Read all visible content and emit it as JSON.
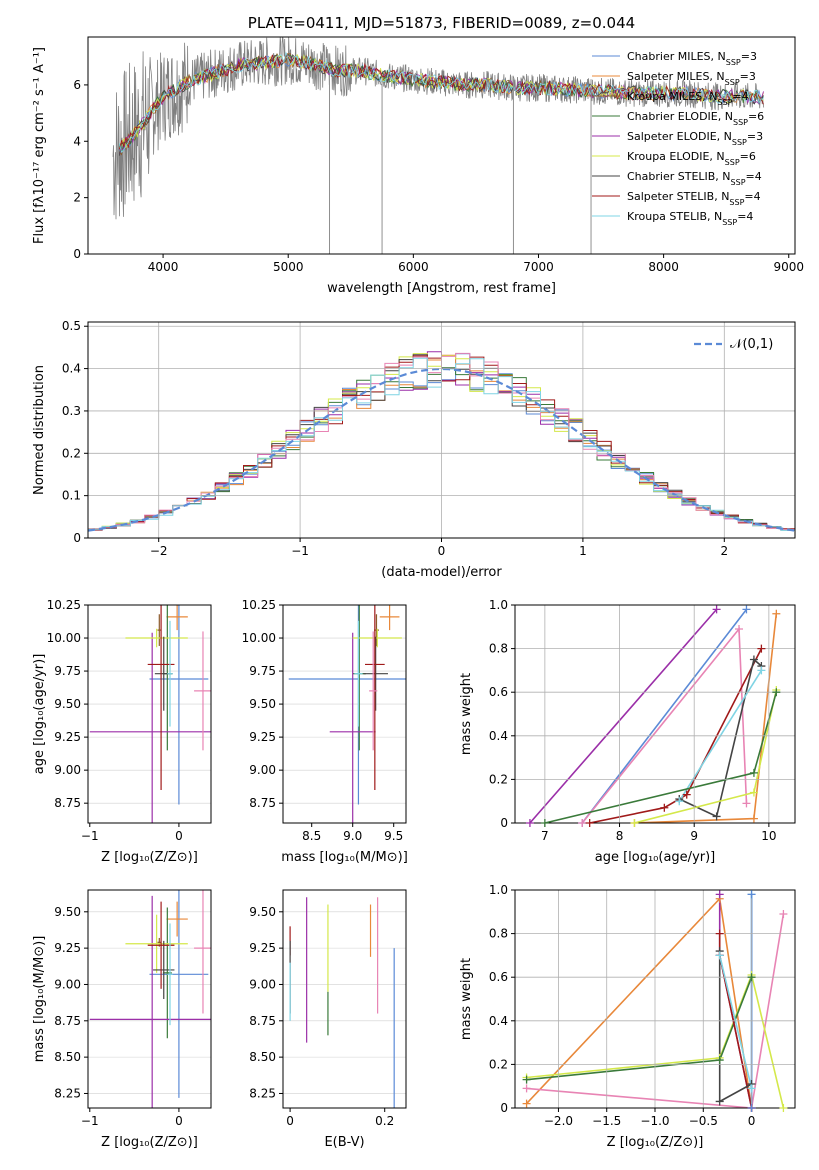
{
  "colors": [
    "#5b8ad6",
    "#e8883a",
    "#8c5a2b",
    "#3a7a3a",
    "#9b2fa8",
    "#d4e84a",
    "#444444",
    "#a01a1a",
    "#7fd4e4"
  ],
  "chart_data": [
    {
      "id": "spectrum",
      "type": "line",
      "title": "PLATE=0411, MJD=51873, FIBERID=0089, z=0.044",
      "xlabel": "wavelength [Angstrom, rest frame]",
      "ylabel": "Flux [fλ10⁻¹⁷ erg cm⁻² s⁻¹ A⁻¹]",
      "xlim": [
        3400,
        9050
      ],
      "ylim": [
        0,
        7.7
      ],
      "xticks": [
        4000,
        5000,
        6000,
        7000,
        8000,
        9000
      ],
      "yticks": [
        0,
        2,
        4,
        6
      ],
      "legend": [
        "Chabrier MILES, N_SSP=3",
        "Salpeter MILES, N_SSP=3",
        "Kroupa MILES, N_SSP=4",
        "Chabrier ELODIE, N_SSP=6",
        "Salpeter ELODIE, N_SSP=3",
        "Kroupa ELODIE, N_SSP=6",
        "Chabrier STELIB, N_SSP=4",
        "Salpeter STELIB, N_SSP=4",
        "Kroupa STELIB, N_SSP=4"
      ],
      "legend_position": "right",
      "data_trace_color": "#808080",
      "continuum_x": [
        3600,
        3700,
        3800,
        3900,
        4000,
        4200,
        4400,
        4600,
        4800,
        5000,
        5200,
        5400,
        5600,
        5800,
        6000,
        6200,
        6400,
        6600,
        6800,
        7000,
        7200,
        7400,
        7600,
        7800,
        8000,
        8200,
        8400,
        8600,
        8800
      ],
      "continuum_y": [
        3.5,
        3.9,
        4.4,
        5.0,
        5.6,
        6.1,
        6.4,
        6.7,
        6.8,
        6.9,
        6.75,
        6.5,
        6.5,
        6.3,
        6.2,
        6.1,
        6.0,
        6.0,
        5.9,
        5.9,
        5.85,
        5.8,
        5.75,
        5.7,
        5.7,
        5.7,
        5.6,
        5.6,
        5.55
      ]
    },
    {
      "id": "residuals",
      "type": "histogram",
      "xlabel": "(data-model)/error",
      "ylabel": "Normed distribution",
      "xlim": [
        -2.5,
        2.5
      ],
      "ylim": [
        0,
        0.51
      ],
      "xticks": [
        -2,
        -1,
        0,
        1,
        2
      ],
      "yticks": [
        0.0,
        0.1,
        0.2,
        0.3,
        0.4,
        0.5
      ],
      "reference_label": "𝒩(0,1)",
      "reference_color": "#5b8ad6",
      "grid": true
    },
    {
      "id": "age-vs-Z",
      "type": "errorbar",
      "xlabel": "Z [log₁₀(Z/Z⊙)]",
      "ylabel": "age  [log₁₀(age/yr)]",
      "xlim": [
        -1.02,
        0.36
      ],
      "ylim": [
        8.6,
        10.25
      ],
      "xticks": [
        -1,
        0
      ],
      "yticks": [
        8.75,
        9.0,
        9.25,
        9.5,
        9.75,
        10.0,
        10.25
      ],
      "points": [
        {
          "x": 0.0,
          "y": 9.69,
          "xerr": 0.33,
          "yerr": 0.95,
          "c": "#5b8ad6"
        },
        {
          "x": -0.02,
          "y": 10.16,
          "xerr": 0.12,
          "yerr": 0.1,
          "c": "#e8883a"
        },
        {
          "x": -0.22,
          "y": 10.06,
          "xerr": 0.02,
          "yerr": 0.12,
          "c": "#8c5a2b"
        },
        {
          "x": -0.13,
          "y": 9.73,
          "xerr": 0.05,
          "yerr": 0.58,
          "c": "#3a7a3a"
        },
        {
          "x": -0.3,
          "y": 9.29,
          "xerr": 0.7,
          "yerr": 0.75,
          "c": "#9b2fa8"
        },
        {
          "x": -0.25,
          "y": 10.0,
          "xerr": 0.35,
          "yerr": 0.07,
          "c": "#d4e84a"
        },
        {
          "x": -0.17,
          "y": 9.73,
          "xerr": 0.1,
          "yerr": 0.28,
          "c": "#444444"
        },
        {
          "x": -0.2,
          "y": 9.8,
          "xerr": 0.15,
          "yerr": 0.95,
          "c": "#a01a1a"
        },
        {
          "x": 0.27,
          "y": 9.6,
          "xerr": 0.1,
          "yerr": 0.45,
          "c": "#e884b4"
        },
        {
          "x": -0.1,
          "y": 9.73,
          "xerr": 0.03,
          "yerr": 0.4,
          "c": "#7fd4e4"
        }
      ]
    },
    {
      "id": "age-vs-mass",
      "type": "errorbar",
      "xlabel": "mass [log₁₀(M/M⊙)]",
      "ylabel": "",
      "xlim": [
        8.15,
        9.65
      ],
      "ylim": [
        8.6,
        10.25
      ],
      "xticks": [
        8.5,
        9.0,
        9.5
      ],
      "yticks": [
        8.75,
        9.0,
        9.25,
        9.5,
        9.75,
        10.0,
        10.25
      ],
      "points": [
        {
          "x": 9.07,
          "y": 9.69,
          "xerr": 0.85,
          "yerr": 0.95,
          "c": "#5b8ad6"
        },
        {
          "x": 9.45,
          "y": 10.16,
          "xerr": 0.12,
          "yerr": 0.1,
          "c": "#e8883a"
        },
        {
          "x": 9.29,
          "y": 10.06,
          "xerr": 0.03,
          "yerr": 0.12,
          "c": "#8c5a2b"
        },
        {
          "x": 9.08,
          "y": 9.73,
          "xerr": 0.08,
          "yerr": 0.58,
          "c": "#3a7a3a"
        },
        {
          "x": 9.0,
          "y": 9.29,
          "xerr": 0.28,
          "yerr": 0.75,
          "c": "#9b2fa8"
        },
        {
          "x": 9.3,
          "y": 10.0,
          "xerr": 0.3,
          "yerr": 0.07,
          "c": "#d4e84a"
        },
        {
          "x": 9.28,
          "y": 9.73,
          "xerr": 0.15,
          "yerr": 0.28,
          "c": "#444444"
        },
        {
          "x": 9.27,
          "y": 9.8,
          "xerr": 0.12,
          "yerr": 0.95,
          "c": "#a01a1a"
        },
        {
          "x": 9.25,
          "y": 9.6,
          "xerr": 0.05,
          "yerr": 0.45,
          "c": "#e884b4"
        },
        {
          "x": 9.07,
          "y": 9.73,
          "xerr": 0.05,
          "yerr": 0.4,
          "c": "#7fd4e4"
        }
      ]
    },
    {
      "id": "weight-vs-age",
      "type": "line",
      "xlabel": "age  [log₁₀(age/yr)]",
      "ylabel": "mass weight",
      "xlim": [
        6.6,
        10.35
      ],
      "ylim": [
        0,
        1.0
      ],
      "xticks": [
        7,
        8,
        9,
        10
      ],
      "yticks": [
        0.0,
        0.2,
        0.4,
        0.6,
        0.8,
        1.0
      ],
      "grid": true,
      "series": [
        {
          "c": "#9b2fa8",
          "x": [
            6.8,
            9.3
          ],
          "y": [
            0.0,
            0.98
          ]
        },
        {
          "c": "#5b8ad6",
          "x": [
            7.5,
            9.7
          ],
          "y": [
            0.0,
            0.98
          ]
        },
        {
          "c": "#e884b4",
          "x": [
            7.5,
            9.6,
            9.7
          ],
          "y": [
            0.0,
            0.89,
            0.09
          ]
        },
        {
          "c": "#a01a1a",
          "x": [
            7.6,
            8.6,
            8.9,
            9.9
          ],
          "y": [
            0.0,
            0.07,
            0.13,
            0.8
          ]
        },
        {
          "c": "#444444",
          "x": [
            8.8,
            9.3,
            9.8,
            9.9
          ],
          "y": [
            0.11,
            0.03,
            0.75,
            0.72
          ]
        },
        {
          "c": "#e8883a",
          "x": [
            8.2,
            9.8,
            10.1
          ],
          "y": [
            0.0,
            0.02,
            0.96
          ]
        },
        {
          "c": "#7fd4e4",
          "x": [
            8.8,
            9.9
          ],
          "y": [
            0.1,
            0.7
          ]
        },
        {
          "c": "#d4e84a",
          "x": [
            8.2,
            9.8,
            10.1
          ],
          "y": [
            0.0,
            0.14,
            0.61
          ]
        },
        {
          "c": "#3a7a3a",
          "x": [
            7.0,
            9.8,
            10.1
          ],
          "y": [
            0.0,
            0.23,
            0.6
          ]
        }
      ]
    },
    {
      "id": "mass-vs-Z",
      "type": "errorbar",
      "xlabel": "Z [log₁₀(Z/Z⊙)]",
      "ylabel": "mass [log₁₀(M/M⊙)]",
      "xlim": [
        -1.02,
        0.36
      ],
      "ylim": [
        8.15,
        9.65
      ],
      "xticks": [
        -1,
        0
      ],
      "yticks": [
        8.25,
        8.5,
        8.75,
        9.0,
        9.25,
        9.5
      ],
      "points": [
        {
          "x": 0.0,
          "y": 9.07,
          "xerr": 0.33,
          "yerr": 0.85,
          "c": "#5b8ad6"
        },
        {
          "x": -0.02,
          "y": 9.45,
          "xerr": 0.12,
          "yerr": 0.12,
          "c": "#e8883a"
        },
        {
          "x": -0.22,
          "y": 9.29,
          "xerr": 0.02,
          "yerr": 0.03,
          "c": "#8c5a2b"
        },
        {
          "x": -0.13,
          "y": 9.08,
          "xerr": 0.05,
          "yerr": 0.45,
          "c": "#3a7a3a"
        },
        {
          "x": -0.3,
          "y": 8.76,
          "xerr": 0.7,
          "yerr": 0.85,
          "c": "#9b2fa8"
        },
        {
          "x": -0.25,
          "y": 9.28,
          "xerr": 0.35,
          "yerr": 0.2,
          "c": "#d4e84a"
        },
        {
          "x": -0.17,
          "y": 9.1,
          "xerr": 0.12,
          "yerr": 0.2,
          "c": "#444444"
        },
        {
          "x": -0.2,
          "y": 9.27,
          "xerr": 0.15,
          "yerr": 0.3,
          "c": "#a01a1a"
        },
        {
          "x": 0.27,
          "y": 9.25,
          "xerr": 0.1,
          "yerr": 0.45,
          "c": "#e884b4"
        },
        {
          "x": -0.1,
          "y": 9.07,
          "xerr": 0.03,
          "yerr": 0.35,
          "c": "#7fd4e4"
        }
      ]
    },
    {
      "id": "mass-vs-ebv",
      "type": "errorbar",
      "xlabel": "E(B-V)",
      "ylabel": "",
      "xlim": [
        -0.015,
        0.245
      ],
      "ylim": [
        8.15,
        9.65
      ],
      "xticks": [
        0.0,
        0.2
      ],
      "yticks": [
        8.25,
        8.5,
        8.75,
        9.0,
        9.25,
        9.5
      ],
      "points": [
        {
          "x": 0.22,
          "y": 8.7,
          "xerr": 0,
          "yerr": 0.55,
          "c": "#5b8ad6"
        },
        {
          "x": 0.17,
          "y": 9.37,
          "xerr": 0,
          "yerr": 0.18,
          "c": "#e8883a"
        },
        {
          "x": 0.0,
          "y": 9.3,
          "xerr": 0,
          "yerr": 0.1,
          "c": "#a01a1a"
        },
        {
          "x": 0.08,
          "y": 8.8,
          "xerr": 0,
          "yerr": 0.15,
          "c": "#3a7a3a"
        },
        {
          "x": 0.035,
          "y": 9.1,
          "xerr": 0,
          "yerr": 0.5,
          "c": "#9b2fa8"
        },
        {
          "x": 0.08,
          "y": 9.25,
          "xerr": 0,
          "yerr": 0.3,
          "c": "#d4e84a"
        },
        {
          "x": 0.0,
          "y": 9.05,
          "xerr": 0,
          "yerr": 0.25,
          "c": "#444444"
        },
        {
          "x": 0.185,
          "y": 9.2,
          "xerr": 0,
          "yerr": 0.4,
          "c": "#e884b4"
        },
        {
          "x": 0.0,
          "y": 8.95,
          "xerr": 0,
          "yerr": 0.2,
          "c": "#7fd4e4"
        }
      ]
    },
    {
      "id": "weight-vs-Z",
      "type": "line",
      "xlabel": "Z [log₁₀(Z/Z⊙)]",
      "ylabel": "mass weight",
      "xlim": [
        -2.45,
        0.45
      ],
      "ylim": [
        0,
        1.0
      ],
      "xticks": [
        -2.0,
        -1.5,
        -1.0,
        -0.5,
        0.0
      ],
      "yticks": [
        0.0,
        0.2,
        0.4,
        0.6,
        0.8,
        1.0
      ],
      "grid": true,
      "series": [
        {
          "c": "#e8883a",
          "x": [
            -2.33,
            -0.33,
            0.0
          ],
          "y": [
            0.02,
            0.96,
            0.0
          ]
        },
        {
          "c": "#e884b4",
          "x": [
            -2.33,
            0.0,
            0.33
          ],
          "y": [
            0.09,
            0.0,
            0.89
          ]
        },
        {
          "c": "#d4e84a",
          "x": [
            -2.33,
            -0.33,
            0.0,
            0.33
          ],
          "y": [
            0.14,
            0.23,
            0.61,
            0.0
          ]
        },
        {
          "c": "#3a7a3a",
          "x": [
            -2.33,
            -0.33,
            0.0
          ],
          "y": [
            0.13,
            0.22,
            0.6
          ]
        },
        {
          "c": "#9b2fa8",
          "x": [
            -0.33,
            -0.33,
            0.0
          ],
          "y": [
            0.98,
            0.7,
            0.0
          ]
        },
        {
          "c": "#a01a1a",
          "x": [
            -0.33,
            -0.33,
            0.0
          ],
          "y": [
            0.8,
            0.7,
            0.0
          ]
        },
        {
          "c": "#444444",
          "x": [
            -0.33,
            -0.33,
            0.0
          ],
          "y": [
            0.72,
            0.03,
            0.11
          ]
        },
        {
          "c": "#7fd4e4",
          "x": [
            -0.33,
            0.0,
            0.0
          ],
          "y": [
            0.7,
            0.09,
            0.98
          ]
        },
        {
          "c": "#5b8ad6",
          "x": [
            0.0,
            0.0
          ],
          "y": [
            0.98,
            0.0
          ]
        }
      ]
    }
  ]
}
